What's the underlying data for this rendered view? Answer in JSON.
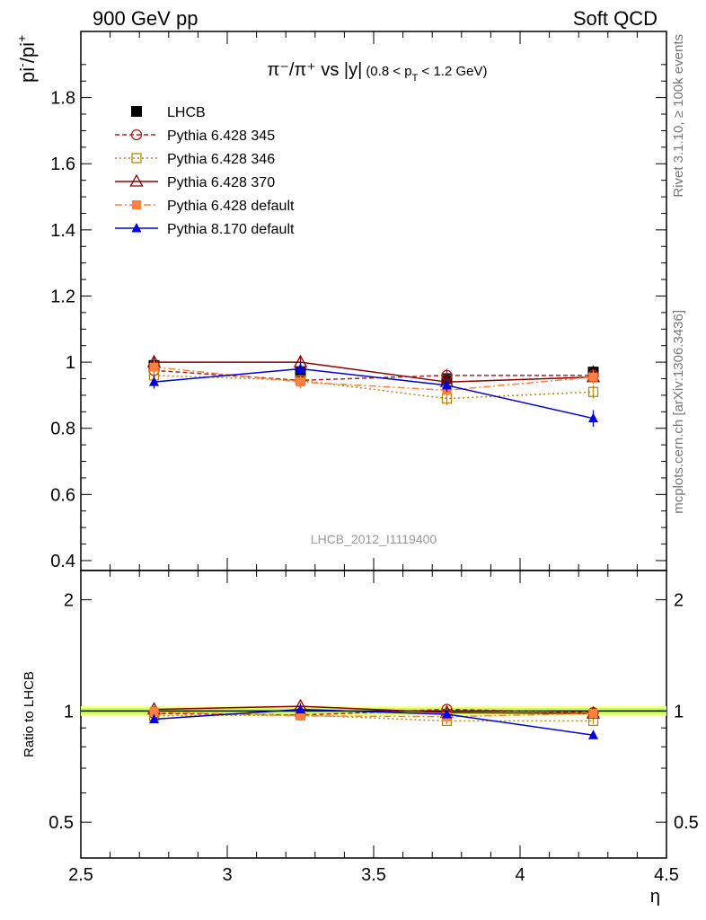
{
  "header": {
    "left": "900 GeV pp",
    "right": "Soft QCD"
  },
  "side": {
    "rivet": "Rivet 3.1.10, ≥ 100k events",
    "mcplots": "mcplots.cern.ch [arXiv:1306.3436]"
  },
  "watermark": "LHCB_2012_I1119400",
  "chart_data": [
    {
      "type": "line",
      "title_main": "π⁻/π⁺ vs |y|",
      "title_cut": "(0.8 < p",
      "title_cut_sub": "T",
      "title_cut_end": " < 1.2 GeV)",
      "ylabel_main": "pi",
      "ylabel_sup1": "-",
      "ylabel_mid": "/pi",
      "ylabel_sup2": "+",
      "xlim": [
        2.5,
        4.5
      ],
      "ylim": [
        0.37,
        2.0
      ],
      "yticks": [
        0.4,
        0.6,
        0.8,
        1.0,
        1.2,
        1.4,
        1.6,
        1.8
      ],
      "ytick_labels": [
        "0.4",
        "0.6",
        "0.8",
        "1",
        "1.2",
        "1.4",
        "1.6",
        "1.8"
      ],
      "x": [
        2.75,
        3.25,
        3.75,
        4.25
      ],
      "legend_position": "top-left",
      "series": [
        {
          "name": "LHCB",
          "values": [
            0.99,
            0.97,
            0.95,
            0.97
          ],
          "errors": [
            0.02,
            0.02,
            0.02,
            0.02
          ],
          "color": "#000000",
          "marker": "filled-square",
          "line": "none"
        },
        {
          "name": "Pythia 6.428 345",
          "values": [
            0.975,
            0.945,
            0.96,
            0.96
          ],
          "errors": [
            0.02,
            0.02,
            0.02,
            0.02
          ],
          "color": "#b22222",
          "marker": "open-circle",
          "line": "dashed"
        },
        {
          "name": "Pythia 6.428 346",
          "values": [
            0.96,
            0.945,
            0.89,
            0.91
          ],
          "errors": [
            0.02,
            0.02,
            0.02,
            0.02
          ],
          "color": "#b8860b",
          "marker": "open-square",
          "line": "dotted"
        },
        {
          "name": "Pythia 6.428 370",
          "values": [
            1.0,
            1.0,
            0.94,
            0.955
          ],
          "errors": [
            0.02,
            0.02,
            0.02,
            0.02
          ],
          "color": "#8b0000",
          "marker": "open-triangle",
          "line": "solid"
        },
        {
          "name": "Pythia 6.428 default",
          "values": [
            0.985,
            0.94,
            0.915,
            0.955
          ],
          "errors": [
            0.02,
            0.02,
            0.02,
            0.02
          ],
          "color": "#ff7f3f",
          "marker": "filled-square-small",
          "line": "dashdot"
        },
        {
          "name": "Pythia 8.170 default",
          "values": [
            0.94,
            0.98,
            0.93,
            0.83
          ],
          "errors": [
            0.02,
            0.02,
            0.02,
            0.025
          ],
          "color": "#0000e0",
          "marker": "filled-triangle",
          "line": "solid"
        }
      ]
    },
    {
      "type": "line",
      "ylabel": "Ratio to LHCB",
      "xlabel": "η",
      "xlim": [
        2.5,
        4.5
      ],
      "ylim": [
        0.4,
        2.4
      ],
      "log_y": true,
      "yticks": [
        0.5,
        1,
        2
      ],
      "ytick_labels": [
        "0.5",
        "1",
        "2"
      ],
      "xticks": [
        2.5,
        3,
        3.5,
        4,
        4.5
      ],
      "xtick_labels": [
        "2.5",
        "3",
        "3.5",
        "4",
        "4.5"
      ],
      "x": [
        2.75,
        3.25,
        3.75,
        4.25
      ],
      "band": {
        "inner": 0.02,
        "outer": 0.03,
        "inner_color": "#ccff66",
        "outer_color": "#ffff99"
      },
      "series": [
        {
          "name": "Pythia 6.428 345",
          "values": [
            0.985,
            0.975,
            1.01,
            0.99
          ]
        },
        {
          "name": "Pythia 6.428 346",
          "values": [
            0.97,
            0.975,
            0.94,
            0.94
          ]
        },
        {
          "name": "Pythia 6.428 370",
          "values": [
            1.01,
            1.03,
            0.99,
            0.985
          ]
        },
        {
          "name": "Pythia 6.428 default",
          "values": [
            0.995,
            0.97,
            0.965,
            0.985
          ]
        },
        {
          "name": "Pythia 8.170 default",
          "values": [
            0.95,
            1.01,
            0.98,
            0.86
          ]
        }
      ]
    }
  ]
}
